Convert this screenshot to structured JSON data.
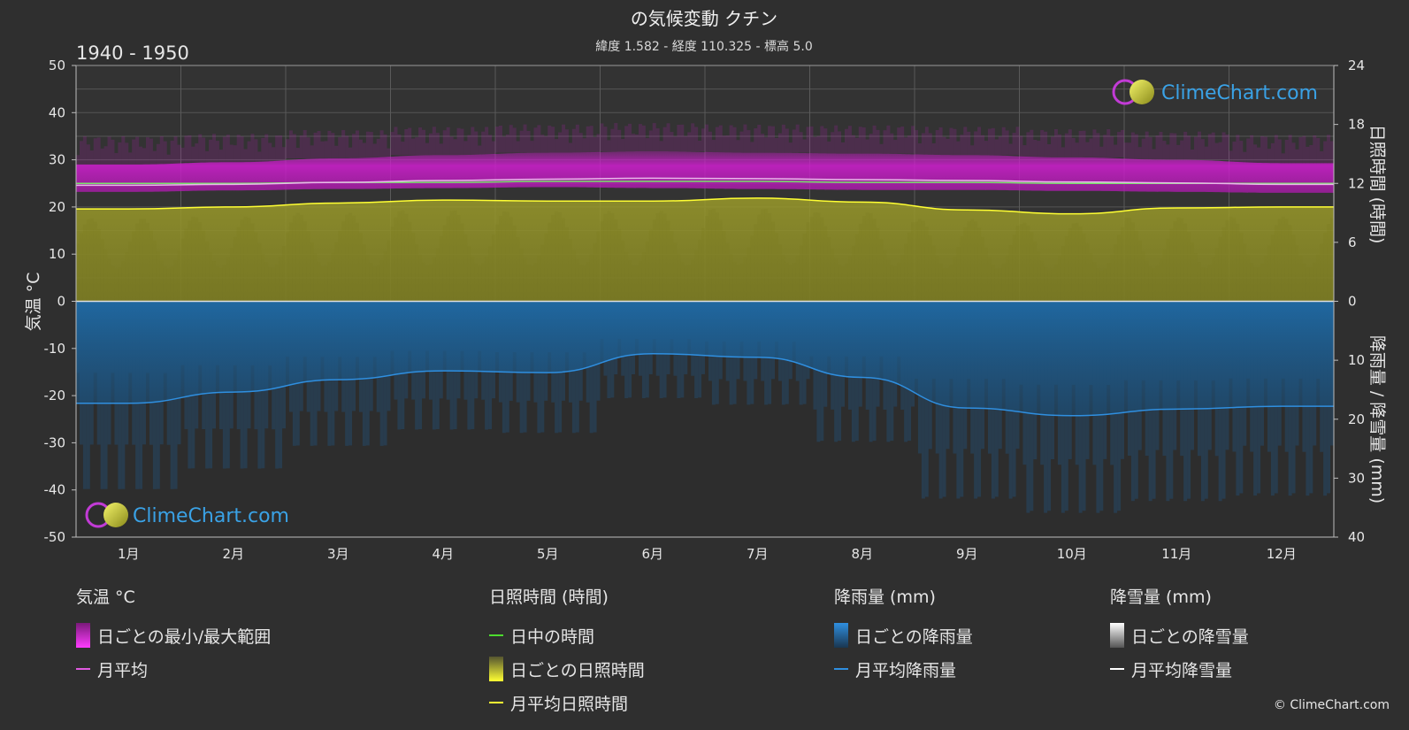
{
  "header": {
    "title": "の気候変動 クチン",
    "subtitle": "緯度 1.582 - 経度 110.325 - 標高 5.0",
    "period": "1940 - 1950"
  },
  "brand": {
    "logo_text": "ClimeChart.com",
    "copyright": "© ClimeChart.com"
  },
  "colors": {
    "background": "#2f2f2f",
    "temp_range": "#d21ed2",
    "sunshine_fill": "#b9b92a",
    "sunshine_line": "#ffff33",
    "daylight_line": "#7ae36b",
    "rain_fill": "#1f6aa5",
    "rain_line": "#2f8fe0",
    "snow": "#ffffff"
  },
  "chart_data": {
    "type": "area",
    "categories": [
      "1月",
      "2月",
      "3月",
      "4月",
      "5月",
      "6月",
      "7月",
      "8月",
      "9月",
      "10月",
      "11月",
      "12月"
    ],
    "left_axis": {
      "label": "気温 °C",
      "ylim": [
        -50,
        50
      ],
      "ticks": [
        "50",
        "40",
        "30",
        "20",
        "10",
        "0",
        "-10",
        "-20",
        "-30",
        "-40",
        "-50"
      ]
    },
    "right_axis_top": {
      "label": "日照時間 (時間)",
      "ylim": [
        0,
        24
      ],
      "ticks": [
        "24",
        "18",
        "12",
        "6",
        "0"
      ]
    },
    "right_axis_bottom": {
      "label": "降雨量 / 降雪量 (mm)",
      "ylim": [
        0,
        40
      ],
      "ticks": [
        "0",
        "10",
        "20",
        "30",
        "40"
      ]
    },
    "grid": true,
    "series": [
      {
        "name": "日ごとの最小/最大範囲",
        "kind": "band",
        "axis": "temp",
        "low": [
          23.2,
          23.5,
          23.8,
          24.0,
          24.2,
          24.0,
          23.8,
          23.6,
          23.6,
          23.4,
          23.2,
          23.0
        ],
        "high": [
          29.0,
          29.5,
          30.3,
          31.0,
          31.5,
          31.8,
          31.5,
          31.3,
          31.0,
          30.5,
          30.0,
          29.3
        ]
      },
      {
        "name": "月平均",
        "kind": "line",
        "axis": "temp",
        "values": [
          24.6,
          24.8,
          25.2,
          25.6,
          25.9,
          26.1,
          26.0,
          25.8,
          25.6,
          25.3,
          25.1,
          24.8
        ]
      },
      {
        "name": "日中の時間",
        "kind": "line",
        "axis": "sun",
        "values": [
          12.0,
          12.0,
          12.1,
          12.1,
          12.2,
          12.2,
          12.2,
          12.1,
          12.1,
          12.0,
          12.0,
          12.0
        ]
      },
      {
        "name": "日ごとの日照時間",
        "kind": "area",
        "axis": "sun",
        "values": [
          9.4,
          9.6,
          10.0,
          10.3,
          10.2,
          10.2,
          10.5,
          10.1,
          9.3,
          8.9,
          9.5,
          9.6
        ]
      },
      {
        "name": "月平均日照時間",
        "kind": "line",
        "axis": "sun",
        "values": [
          9.4,
          9.6,
          10.0,
          10.3,
          10.2,
          10.2,
          10.5,
          10.1,
          9.3,
          8.9,
          9.5,
          9.6
        ]
      },
      {
        "name": "日ごとの降雨量",
        "kind": "area",
        "axis": "rain",
        "values": [
          17.3,
          15.4,
          13.3,
          11.8,
          12.1,
          8.9,
          9.5,
          12.9,
          18.1,
          19.4,
          18.3,
          17.8
        ]
      },
      {
        "name": "月平均降雨量",
        "kind": "line",
        "axis": "rain",
        "values": [
          17.3,
          15.4,
          13.3,
          11.8,
          12.1,
          8.9,
          9.5,
          12.9,
          18.1,
          19.4,
          18.3,
          17.8
        ]
      },
      {
        "name": "月平均降雪量",
        "kind": "line",
        "axis": "rain",
        "values": [
          0,
          0,
          0,
          0,
          0,
          0,
          0,
          0,
          0,
          0,
          0,
          0
        ]
      }
    ]
  },
  "legend": {
    "temp": {
      "title": "気温 °C",
      "range_label": "日ごとの最小/最大範囲",
      "avg_label": "月平均"
    },
    "sun": {
      "title": "日照時間 (時間)",
      "daylight_label": "日中の時間",
      "daily_label": "日ごとの日照時間",
      "avg_label": "月平均日照時間"
    },
    "rain": {
      "title": "降雨量 (mm)",
      "daily_label": "日ごとの降雨量",
      "avg_label": "月平均降雨量"
    },
    "snow": {
      "title": "降雪量 (mm)",
      "daily_label": "日ごとの降雪量",
      "avg_label": "月平均降雪量"
    }
  }
}
